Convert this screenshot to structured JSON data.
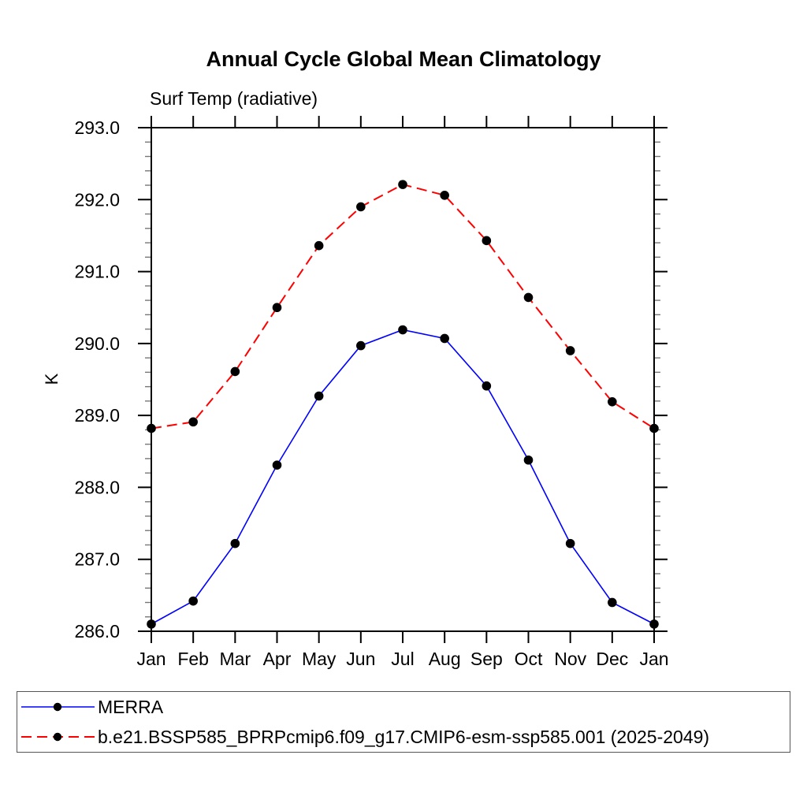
{
  "page": {
    "background": "#ffffff",
    "text_color": "#000000",
    "axis_color": "#000000"
  },
  "chart_data": {
    "type": "line",
    "title": "Annual Cycle Global Mean Climatology",
    "subtitle": "Surf Temp (radiative)",
    "ylabel": "K",
    "xlabel": "",
    "x_categories": [
      "Jan",
      "Feb",
      "Mar",
      "Apr",
      "May",
      "Jun",
      "Jul",
      "Aug",
      "Sep",
      "Oct",
      "Nov",
      "Dec",
      "Jan"
    ],
    "ylim": [
      286.0,
      293.0
    ],
    "y_major_step": 1.0,
    "y_minor_step": 0.2,
    "y_tick_labels": [
      "286.0",
      "287.0",
      "288.0",
      "289.0",
      "290.0",
      "291.0",
      "292.0",
      "293.0"
    ],
    "grid": false,
    "legend_position": "bottom",
    "series": [
      {
        "name": "MERRA",
        "color": "#0000ff",
        "line_style": "solid",
        "marker": "circle",
        "marker_color": "#000000",
        "values": [
          286.1,
          286.42,
          287.22,
          288.31,
          289.27,
          289.97,
          290.19,
          290.07,
          289.41,
          288.38,
          287.22,
          286.4,
          286.1
        ]
      },
      {
        "name": "b.e21.BSSP585_BPRPcmip6.f09_g17.CMIP6-esm-ssp585.001 (2025-2049)",
        "color": "#ff0000",
        "line_style": "dashed",
        "marker": "circle",
        "marker_color": "#000000",
        "values": [
          288.82,
          288.91,
          289.61,
          290.5,
          291.36,
          291.9,
          292.21,
          292.06,
          291.43,
          290.64,
          289.9,
          289.19,
          288.82
        ]
      }
    ]
  }
}
